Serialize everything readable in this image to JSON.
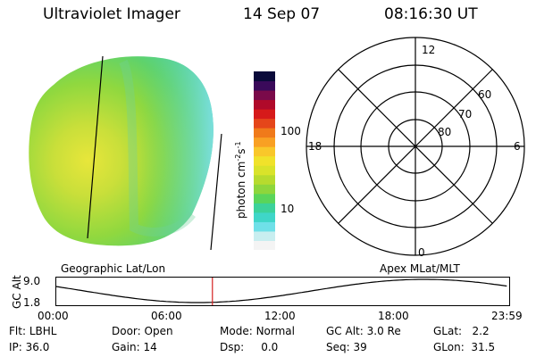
{
  "header": {
    "instrument": "Ultraviolet Imager",
    "date": "14 Sep 07",
    "time": "08:16:30 UT"
  },
  "colorbar": {
    "label": "photon cm",
    "label_sup1": "-2",
    "label_mid": "s",
    "label_sup2": "-1",
    "tick_upper": "100",
    "tick_lower": "10",
    "colors": [
      "#f4f4f4",
      "#c8eef0",
      "#6fe0e8",
      "#3fd6c8",
      "#3cd29a",
      "#5ad55a",
      "#8ed63c",
      "#b7db2e",
      "#d9e32a",
      "#f0e22a",
      "#f9c72a",
      "#f9a023",
      "#f07a1a",
      "#e5461a",
      "#d61a1a",
      "#b00a2a",
      "#7a0a4a",
      "#3a0a5a",
      "#0a0a3a"
    ]
  },
  "polar": {
    "label_top": "12",
    "label_bottom": "0",
    "label_left": "18",
    "label_right": "6",
    "ring_labels": [
      "60",
      "70",
      "80"
    ]
  },
  "timeline": {
    "left_title": "Geographic Lat/Lon",
    "right_title": "Apex MLat/MLT",
    "axis_label": "GC Alt",
    "y_top": "9.0",
    "y_bottom": "1.8",
    "x_labels": [
      "00:00",
      "06:00",
      "12:00",
      "18:00",
      "23:59"
    ],
    "marker_time": "08:16:30"
  },
  "info": {
    "row1": [
      {
        "label": "Flt:",
        "value": "LBHL"
      },
      {
        "label": "Door:",
        "value": "Open"
      },
      {
        "label": "Mode:",
        "value": "Normal"
      },
      {
        "label": "GC Alt:",
        "value": "3.0 Re"
      },
      {
        "label": "GLat:",
        "value": "2.2"
      }
    ],
    "row2": [
      {
        "label": "IP:",
        "value": "36.0"
      },
      {
        "label": "Gain:",
        "value": "14"
      },
      {
        "label": "Dsp:",
        "value": "0.0"
      },
      {
        "label": "Seq:",
        "value": "39"
      },
      {
        "label": "GLon:",
        "value": "31.5"
      }
    ]
  }
}
